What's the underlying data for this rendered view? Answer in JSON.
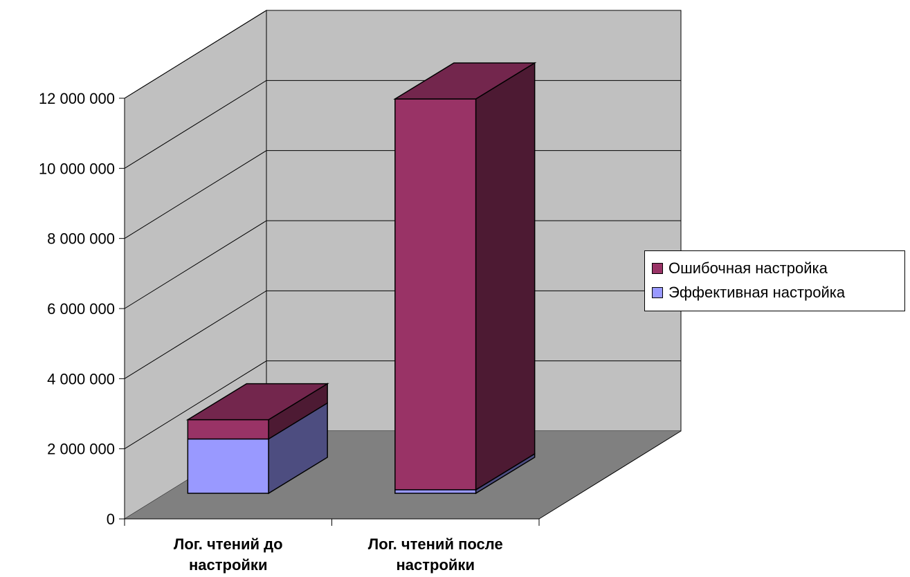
{
  "chart_data": {
    "type": "bar",
    "stacked": true,
    "three_d": true,
    "categories": [
      "Лог. чтений до настройки",
      "Лог. чтений после настройки"
    ],
    "category_lines": [
      [
        "Лог. чтений до",
        "настройки"
      ],
      [
        "Лог. чтений после",
        "настройки"
      ]
    ],
    "series": [
      {
        "name": "Эффективная настройка",
        "values": [
          1550000,
          100000
        ],
        "color": "#9999ff"
      },
      {
        "name": "Ошибочная настройка",
        "values": [
          550000,
          11150000
        ],
        "color": "#993366"
      }
    ],
    "ylim": [
      0,
      12000000
    ],
    "yticks": [
      0,
      2000000,
      4000000,
      6000000,
      8000000,
      10000000,
      12000000
    ],
    "ytick_labels": [
      "0",
      "2 000 000",
      "4 000 000",
      "6 000 000",
      "8 000 000",
      "10 000 000",
      "12 000 000"
    ],
    "gridlines": true,
    "legend_position": "right",
    "title": "",
    "xlabel": "",
    "ylabel": "",
    "colors": {
      "walls": "#c0c0c0",
      "floor": "#808080",
      "background": "#ffffff"
    }
  }
}
